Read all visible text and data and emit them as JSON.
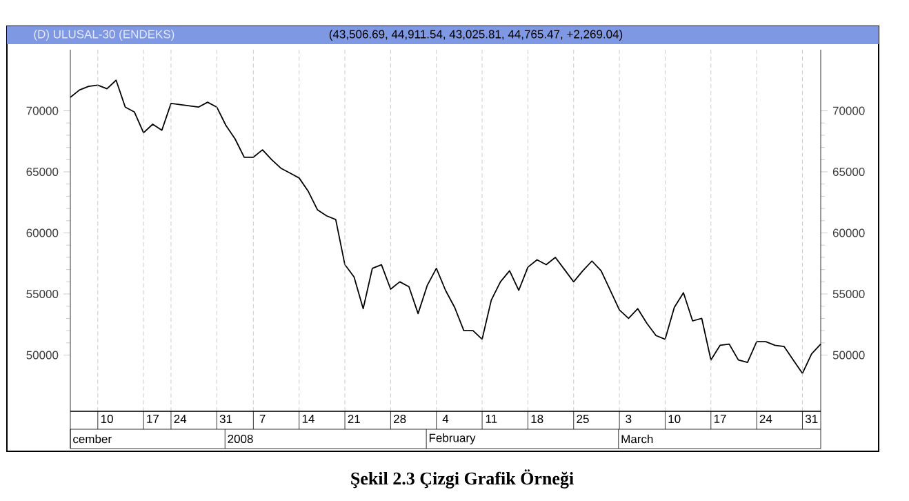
{
  "chart_data": {
    "type": "line",
    "title": "(D) ULUSAL-30 (ENDEKS)",
    "subtitle": "(43,506.69, 44,911.54, 43,025.81, 44,765.47, +2,269.04)",
    "annotations": [
      "Şekil 2.3 Çizgi Grafik Örneği",
      "cember",
      "2008",
      "February",
      "March"
    ],
    "categories": [
      null,
      null,
      null,
      null,
      "10",
      null,
      null,
      null,
      null,
      "17",
      null,
      null,
      "24",
      null,
      null,
      null,
      null,
      "31",
      null,
      null,
      null,
      "7",
      null,
      null,
      null,
      null,
      "14",
      null,
      null,
      null,
      null,
      "21",
      null,
      null,
      null,
      null,
      "28",
      null,
      null,
      null,
      null,
      "4",
      null,
      null,
      null,
      null,
      "11",
      null,
      null,
      null,
      null,
      "18",
      null,
      null,
      null,
      null,
      "25",
      null,
      null,
      null,
      null,
      "3",
      null,
      null,
      null,
      null,
      "10",
      null,
      null,
      null,
      null,
      "17",
      null,
      null,
      null,
      null,
      "24",
      null,
      null,
      null,
      null,
      "31",
      null
    ],
    "series": [
      {
        "color": "#000000",
        "values": [
          71100,
          71700,
          72000,
          72100,
          71800,
          72500,
          70300,
          69900,
          68200,
          68900,
          68400,
          70600,
          70500,
          70400,
          70300,
          70700,
          70300,
          68800,
          67700,
          66200,
          66200,
          66800,
          66000,
          65300,
          64900,
          64500,
          63400,
          61900,
          61400,
          61100,
          57400,
          56400,
          53800,
          57100,
          57400,
          55400,
          56000,
          55600,
          53400,
          55700,
          57100,
          55300,
          53900,
          52000,
          52000,
          51300,
          54500,
          56000,
          56900,
          55300,
          57200,
          57800,
          57400,
          58000,
          57000,
          56000,
          56900,
          57700,
          56900,
          55300,
          53700,
          53000,
          53800,
          52600,
          51600,
          51300,
          53900,
          55100,
          52800,
          53000,
          49600,
          50800,
          50900,
          49600,
          49400,
          51100,
          51100,
          50800,
          50700,
          49600,
          48500,
          50100,
          50900
        ]
      }
    ],
    "ylim": [
      45400,
      75000
    ],
    "yticks": [
      50000,
      55000,
      60000,
      65000,
      70000
    ],
    "y2lim": [
      45400,
      75000
    ],
    "y2ticks": [
      50000,
      55000,
      60000,
      65000,
      70000
    ],
    "grid": "x",
    "line_style": "solid"
  }
}
